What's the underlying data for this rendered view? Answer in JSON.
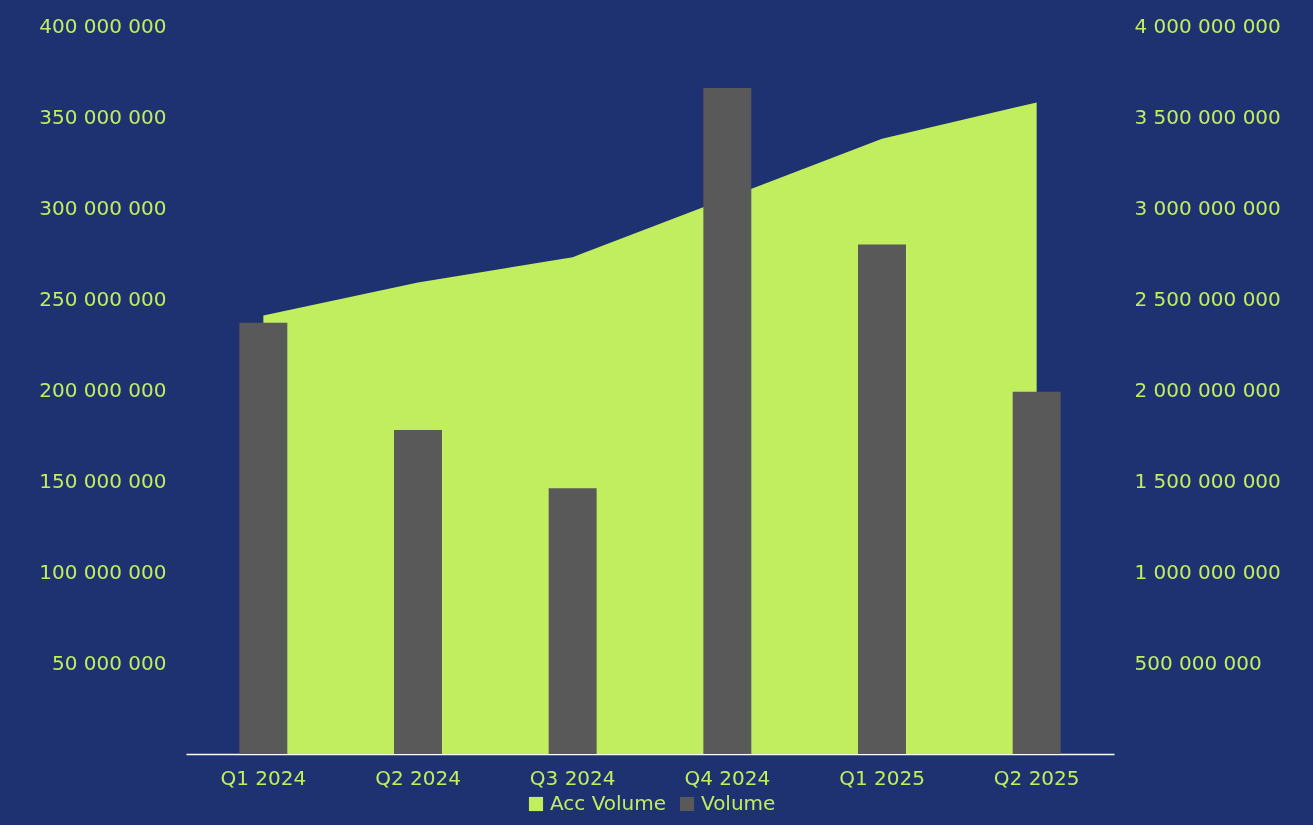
{
  "chart_data": {
    "type": "bar",
    "categories": [
      "Q1 2024",
      "Q2 2024",
      "Q3 2024",
      "Q4 2024",
      "Q1 2025",
      "Q2 2025"
    ],
    "series": [
      {
        "name": "Acc Volume",
        "type": "area",
        "axis": "y2",
        "color": "#c0ee5f",
        "values": [
          2410000000,
          2590000000,
          2730000000,
          null,
          3380000000,
          3580000000
        ]
      },
      {
        "name": "Volume",
        "color": "#595959",
        "values": [
          237000000,
          178000000,
          146000000,
          366000000,
          280000000,
          199000000
        ]
      }
    ],
    "ylim": [
      0,
      400000000
    ],
    "yticks": [
      {
        "value": 50000000,
        "label": "50 000 000"
      },
      {
        "value": 100000000,
        "label": "100 000 000"
      },
      {
        "value": 150000000,
        "label": "150 000 000"
      },
      {
        "value": 200000000,
        "label": "200 000 000"
      },
      {
        "value": 250000000,
        "label": "250 000 000"
      },
      {
        "value": 300000000,
        "label": "300 000 000"
      },
      {
        "value": 350000000,
        "label": "350 000 000"
      },
      {
        "value": 400000000,
        "label": "400 000 000"
      }
    ],
    "y2lim": [
      0,
      4000000000
    ],
    "y2ticks": [
      {
        "value": 500000000,
        "label": "500 000 000"
      },
      {
        "value": 1000000000,
        "label": "1 000 000 000"
      },
      {
        "value": 1500000000,
        "label": "1 500 000 000"
      },
      {
        "value": 2000000000,
        "label": "2 000 000 000"
      },
      {
        "value": 2500000000,
        "label": "2 500 000 000"
      },
      {
        "value": 3000000000,
        "label": "3 000 000 000"
      },
      {
        "value": 3500000000,
        "label": "3 500 000 000"
      },
      {
        "value": 4000000000,
        "label": "4 000 000 000"
      }
    ],
    "grid": false,
    "legend": "bottom"
  }
}
